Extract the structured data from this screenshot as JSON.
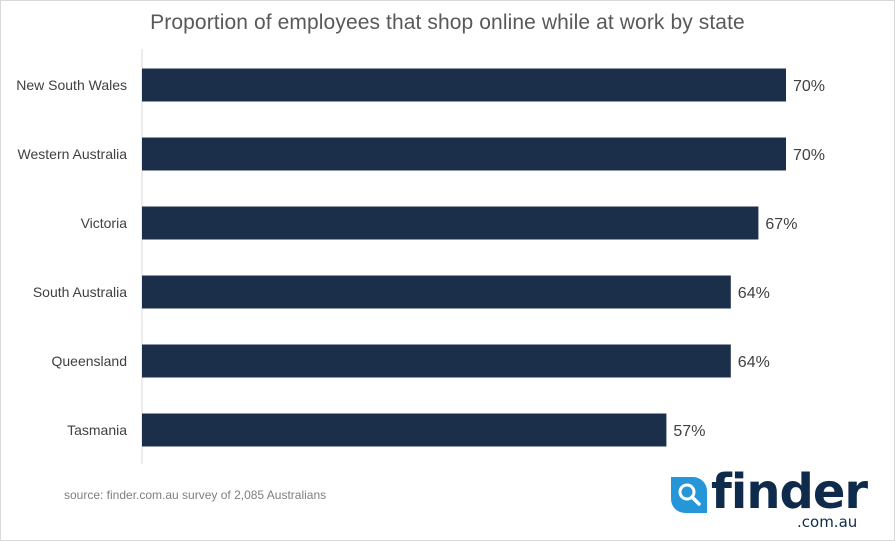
{
  "chart_data": {
    "type": "bar",
    "orientation": "horizontal",
    "title": "Proportion of employees that shop online while at work by state",
    "categories": [
      "New South Wales",
      "Western Australia",
      "Victoria",
      "South Australia",
      "Queensland",
      "Tasmania"
    ],
    "values": [
      70,
      70,
      67,
      64,
      64,
      57
    ],
    "labels": [
      "70%",
      "70%",
      "67%",
      "64%",
      "64%",
      "57%"
    ],
    "unit": "%",
    "xlim": [
      0,
      100
    ],
    "grid": false,
    "bar_color": "#1b2f4b"
  },
  "footer": {
    "source": "source: finder.com.au survey of 2,085 Australians"
  },
  "logo": {
    "word": "finder",
    "domain": ".com.au",
    "icon": "search-magnifier-icon",
    "icon_color": "#2596d8",
    "word_color": "#0f2b4c"
  }
}
